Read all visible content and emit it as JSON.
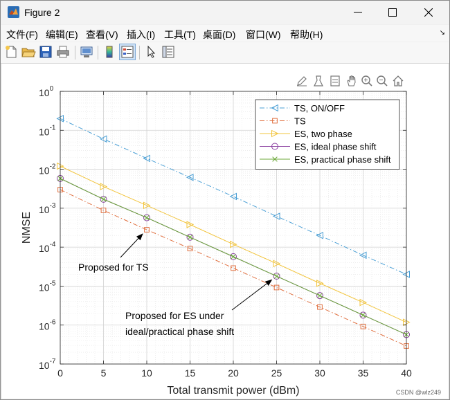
{
  "window": {
    "title": "Figure 2"
  },
  "menu": [
    "文件(F)",
    "编辑(E)",
    "查看(V)",
    "插入(I)",
    "工具(T)",
    "桌面(D)",
    "窗口(W)",
    "帮助(H)"
  ],
  "toolbar_icons": [
    "new-figure-icon",
    "open-folder-icon",
    "save-icon",
    "print-icon",
    "link-figure-icon",
    "colorbar-icon",
    "legend-icon",
    "pointer-icon",
    "property-inspector-icon"
  ],
  "axes_toolbar_icons": [
    "edit-icon",
    "brush-icon",
    "datatip-icon",
    "pan-icon",
    "zoom-in-icon",
    "zoom-out-icon",
    "home-icon"
  ],
  "watermark": "CSDN @wlz249",
  "colors": {
    "ts_onoff": "#4a9fd5",
    "ts": "#e07040",
    "es_two_phase": "#f2c43c",
    "es_ideal": "#8a3fa0",
    "es_practical": "#6ca83a"
  },
  "chart_data": {
    "type": "line",
    "xlabel": "Total transmit power (dBm)",
    "ylabel": "NMSE",
    "xlim": [
      0,
      40
    ],
    "ylim": [
      1e-07,
      1
    ],
    "yscale": "log",
    "grid": true,
    "x_ticks": [
      "0",
      "5",
      "10",
      "15",
      "20",
      "25",
      "30",
      "35",
      "40"
    ],
    "y_ticks": [
      {
        "base": "10",
        "exp": "0"
      },
      {
        "base": "10",
        "exp": "-1"
      },
      {
        "base": "10",
        "exp": "-2"
      },
      {
        "base": "10",
        "exp": "-3"
      },
      {
        "base": "10",
        "exp": "-4"
      },
      {
        "base": "10",
        "exp": "-5"
      },
      {
        "base": "10",
        "exp": "-6"
      },
      {
        "base": "10",
        "exp": "-7"
      }
    ],
    "legend_position": "top-right",
    "x": [
      0,
      5,
      10,
      15,
      20,
      25,
      30,
      35,
      40
    ],
    "series": [
      {
        "name": "TS, ON/OFF",
        "values": [
          0.2,
          0.06,
          0.019,
          0.0062,
          0.002,
          0.00062,
          0.0002,
          6.2e-05,
          2e-05
        ],
        "color": "#4a9fd5",
        "dash": "dashdot",
        "marker": "triangle-left"
      },
      {
        "name": "TS",
        "values": [
          0.003,
          0.00088,
          0.00028,
          9.2e-05,
          2.9e-05,
          9.2e-06,
          2.9e-06,
          9.2e-07,
          2.9e-07
        ],
        "color": "#e07040",
        "dash": "dashdot",
        "marker": "square"
      },
      {
        "name": "ES, two phase",
        "values": [
          0.012,
          0.0036,
          0.00118,
          0.00038,
          0.000118,
          3.8e-05,
          1.18e-05,
          3.8e-06,
          1.18e-06
        ],
        "color": "#f2c43c",
        "dash": "solid",
        "marker": "triangle-right"
      },
      {
        "name": "ES, ideal phase shift",
        "values": [
          0.0058,
          0.0017,
          0.00057,
          0.00018,
          5.7e-05,
          1.8e-05,
          5.7e-06,
          1.8e-06,
          5.7e-07
        ],
        "color": "#8a3fa0",
        "dash": "solid",
        "marker": "circle"
      },
      {
        "name": "ES, practical phase shift",
        "values": [
          0.0058,
          0.0017,
          0.00057,
          0.00018,
          5.7e-05,
          1.8e-05,
          5.7e-06,
          1.8e-06,
          5.7e-07
        ],
        "color": "#6ca83a",
        "dash": "solid",
        "marker": "x"
      }
    ],
    "annotations": [
      {
        "text": [
          "Proposed for TS"
        ],
        "arrow_to": [
          10,
          0.00028
        ]
      },
      {
        "text": [
          "Proposed for ES under",
          "ideal/practical phase shift"
        ],
        "arrow_to": [
          25,
          1.85e-05
        ]
      }
    ]
  }
}
